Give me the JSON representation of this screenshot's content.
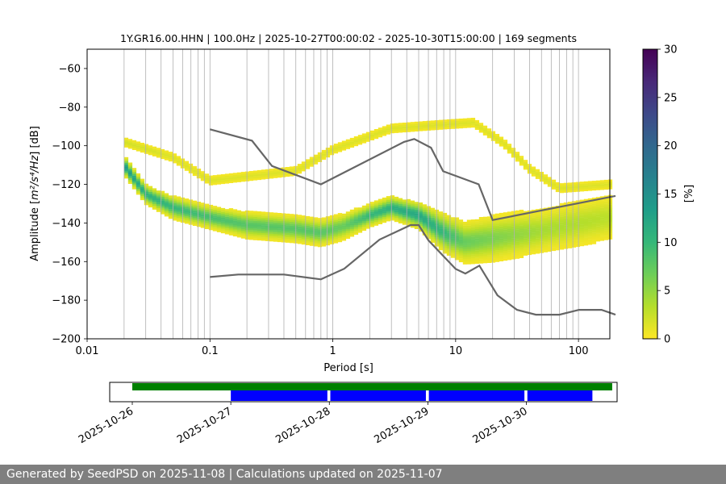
{
  "chart_data": {
    "type": "heatmap",
    "title": "1Y.GR16.00.HHN | 100.0Hz | 2025-10-27T00:00:02 - 2025-10-30T15:00:00 | 169 segments",
    "xlabel": "Period [s]",
    "ylabel_main": "Amplitude [",
    "ylabel_math": "m²/s⁴/Hz",
    "ylabel_end": "] [dB]",
    "x_scale": "log",
    "xlim": [
      0.01,
      180
    ],
    "ylim": [
      -200,
      -50
    ],
    "x_ticks": [
      {
        "value": 0.01,
        "label": "0.01"
      },
      {
        "value": 0.1,
        "label": "0.1"
      },
      {
        "value": 1,
        "label": "1"
      },
      {
        "value": 10,
        "label": "10"
      },
      {
        "value": 100,
        "label": "100"
      }
    ],
    "y_ticks": [
      {
        "value": -60,
        "label": "−60"
      },
      {
        "value": -80,
        "label": "−80"
      },
      {
        "value": -100,
        "label": "−100"
      },
      {
        "value": -120,
        "label": "−120"
      },
      {
        "value": -140,
        "label": "−140"
      },
      {
        "value": -160,
        "label": "−160"
      },
      {
        "value": -180,
        "label": "−180"
      },
      {
        "value": -200,
        "label": "−200"
      }
    ],
    "grid": "x-major-and-minor",
    "colorbar": {
      "label": "[%]",
      "range": [
        0,
        30
      ],
      "ticks": [
        {
          "value": 0,
          "label": "0"
        },
        {
          "value": 5,
          "label": "5"
        },
        {
          "value": 10,
          "label": "10"
        },
        {
          "value": 15,
          "label": "15"
        },
        {
          "value": 20,
          "label": "20"
        },
        {
          "value": 25,
          "label": "25"
        },
        {
          "value": 30,
          "label": "30"
        }
      ],
      "colormap": "viridis_r",
      "stops": [
        "#fde725",
        "#b5de2b",
        "#6ece58",
        "#35b779",
        "#1f9e89",
        "#26828e",
        "#31688e",
        "#3e4989",
        "#482878",
        "#440154"
      ]
    },
    "noise_models": [
      {
        "name": "high-noise-model",
        "points": [
          [
            0.1,
            -91.5
          ],
          [
            0.22,
            -97.4
          ],
          [
            0.32,
            -110.5
          ],
          [
            0.8,
            -120
          ],
          [
            3.8,
            -98
          ],
          [
            4.6,
            -96.5
          ],
          [
            6.3,
            -101
          ],
          [
            7.9,
            -113.2
          ],
          [
            15.4,
            -120
          ],
          [
            20,
            -138.5
          ],
          [
            200,
            -126
          ]
        ]
      },
      {
        "name": "low-noise-model",
        "points": [
          [
            0.1,
            -168
          ],
          [
            0.17,
            -166.7
          ],
          [
            0.4,
            -166.7
          ],
          [
            0.8,
            -169.2
          ],
          [
            1.24,
            -163.7
          ],
          [
            2.4,
            -148.6
          ],
          [
            4.3,
            -141.1
          ],
          [
            5.0,
            -141.1
          ],
          [
            6.0,
            -149
          ],
          [
            10.0,
            -163.8
          ],
          [
            12.0,
            -166.2
          ],
          [
            15.6,
            -162.1
          ],
          [
            21.9,
            -177.5
          ],
          [
            31.6,
            -185
          ],
          [
            45,
            -187.5
          ],
          [
            70,
            -187.5
          ],
          [
            101,
            -185
          ],
          [
            154,
            -185
          ],
          [
            200,
            -187.5
          ]
        ]
      }
    ],
    "density_bands": [
      {
        "name": "main-band",
        "points": [
          [
            0.02,
            -110,
            5,
            14
          ],
          [
            0.03,
            -125,
            5,
            11
          ],
          [
            0.05,
            -132,
            6,
            10
          ],
          [
            0.1,
            -137,
            6,
            9
          ],
          [
            0.2,
            -141,
            7,
            8
          ],
          [
            0.5,
            -143,
            7,
            8
          ],
          [
            0.8,
            -145,
            7,
            8
          ],
          [
            1.2,
            -142,
            7,
            7
          ],
          [
            2,
            -136,
            6,
            10
          ],
          [
            3,
            -132,
            6,
            11
          ],
          [
            5,
            -136,
            7,
            12
          ],
          [
            8,
            -145,
            10,
            10
          ],
          [
            12,
            -150,
            11,
            7
          ],
          [
            20,
            -148,
            12,
            6
          ],
          [
            50,
            -144,
            12,
            4
          ],
          [
            180,
            -137,
            13,
            3
          ]
        ]
      },
      {
        "name": "upper-band",
        "points": [
          [
            0.02,
            -98,
            3,
            2
          ],
          [
            0.05,
            -106,
            3,
            1.5
          ],
          [
            0.1,
            -118,
            3,
            1.5
          ],
          [
            0.5,
            -113,
            3,
            1.5
          ],
          [
            1,
            -102,
            3,
            1.5
          ],
          [
            3,
            -91,
            3,
            1.5
          ],
          [
            8,
            -89,
            3,
            1.5
          ],
          [
            14,
            -88,
            3,
            1.5
          ],
          [
            25,
            -99,
            3,
            1.5
          ],
          [
            40,
            -112,
            3,
            1.5
          ],
          [
            70,
            -122,
            3,
            1.5
          ],
          [
            180,
            -120,
            3,
            1.5
          ]
        ]
      }
    ],
    "availability": {
      "axis_labels": [
        "2025-10-26",
        "2025-10-27",
        "2025-10-28",
        "2025-10-29",
        "2025-10-30"
      ],
      "axis_start_day": 26,
      "axis_end_day": 31.15,
      "overall_bar": {
        "start_day": 26.0,
        "end_day": 30.65,
        "color": "#008000"
      },
      "segments": [
        {
          "start_day": 27.0,
          "end_day": 27.98,
          "color": "#0000ff"
        },
        {
          "start_day": 28.01,
          "end_day": 28.98,
          "color": "#0000ff"
        },
        {
          "start_day": 29.01,
          "end_day": 29.98,
          "color": "#0000ff"
        },
        {
          "start_day": 30.01,
          "end_day": 30.67,
          "color": "#0000ff"
        }
      ]
    }
  },
  "footer": {
    "text": "Generated by SeedPSD on 2025-11-08 | Calculations updated on 2025-11-07"
  }
}
